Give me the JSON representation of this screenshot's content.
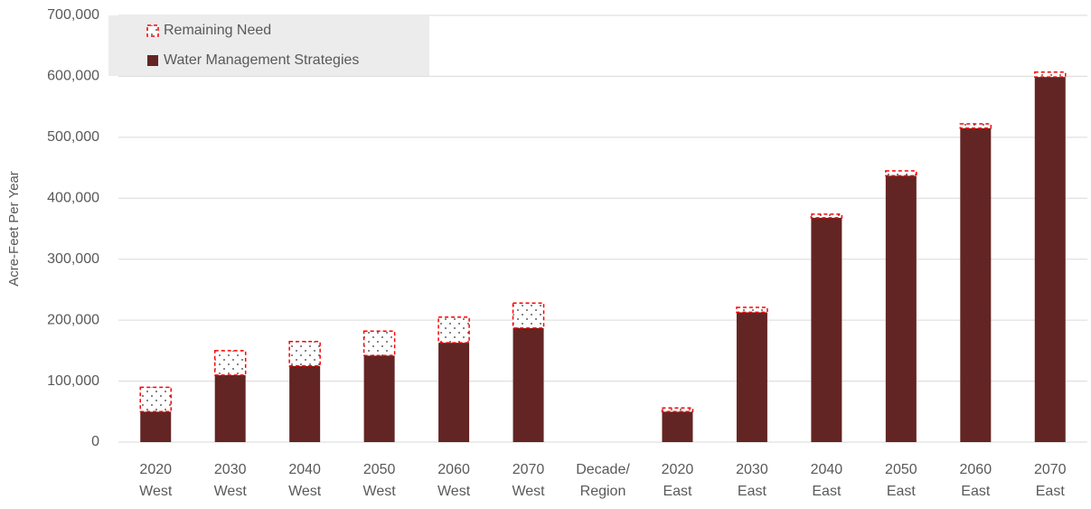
{
  "chart_data": {
    "type": "stacked_bar",
    "y_label": "Acre-Feet Per Year",
    "categories": [
      [
        "2020",
        "West"
      ],
      [
        "2030",
        "West"
      ],
      [
        "2040",
        "West"
      ],
      [
        "2050",
        "West"
      ],
      [
        "2060",
        "West"
      ],
      [
        "2070",
        "West"
      ],
      [
        "Decade/",
        "Region"
      ],
      [
        "2020",
        "East"
      ],
      [
        "2030",
        "East"
      ],
      [
        "2040",
        "East"
      ],
      [
        "2050",
        "East"
      ],
      [
        "2060",
        "East"
      ],
      [
        "2070",
        "East"
      ]
    ],
    "series": [
      {
        "name": "Water Management Strategies",
        "color": "#632523",
        "values": [
          50000,
          110000,
          125000,
          142000,
          163000,
          187000,
          null,
          50000,
          213000,
          368000,
          437000,
          515000,
          599000
        ]
      },
      {
        "name": "Remaining Need",
        "color": "#ff0000",
        "pattern": "dotted",
        "values": [
          40000,
          40000,
          40000,
          40000,
          42000,
          41000,
          null,
          6000,
          8000,
          6000,
          8000,
          7000,
          8000
        ]
      }
    ],
    "ylim": [
      0,
      700000
    ],
    "yticks": [
      0,
      {
        "value": 100000,
        "label": "100,000"
      },
      {
        "value": 200000,
        "label": "200,000"
      },
      {
        "value": 300000,
        "label": "300,000"
      },
      {
        "value": 400000,
        "label": "400,000"
      },
      {
        "value": 500000,
        "label": "500,000"
      },
      {
        "value": 600000,
        "label": "600,000"
      },
      {
        "value": 700000,
        "label": "700,000"
      }
    ],
    "grid": true,
    "legend": "top-left",
    "legend_order": [
      1,
      0
    ]
  }
}
